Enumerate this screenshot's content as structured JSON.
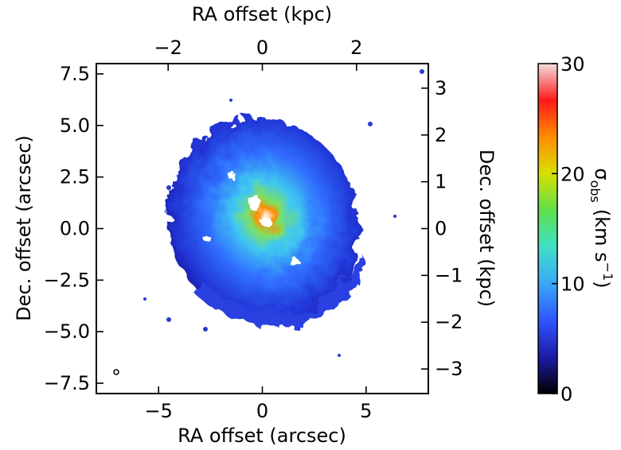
{
  "chart_data": {
    "type": "image",
    "xlabel": "RA offset (arcsec)",
    "ylabel": "Dec. offset (arcsec)",
    "x2label": "RA offset (kpc)",
    "y2label": "Dec. offset (kpc)",
    "xlim": [
      -8,
      8
    ],
    "ylim": [
      -8,
      8
    ],
    "x2lim": [
      -3.525,
      3.525
    ],
    "y2lim": [
      -3.525,
      3.525
    ],
    "xticks": [
      {
        "value": -5,
        "label": "−5"
      },
      0,
      5
    ],
    "yticks": [
      {
        "value": -7.5,
        "label": "−7.5"
      },
      {
        "value": -5,
        "label": "−5.0"
      },
      {
        "value": -2.5,
        "label": "−2.5"
      },
      {
        "value": 0,
        "label": "0.0"
      },
      2.5,
      {
        "value": 5,
        "label": "5.0"
      },
      7.5
    ],
    "x2ticks": [
      {
        "value": -2,
        "label": "−2"
      },
      0,
      2
    ],
    "y2ticks": [
      {
        "value": -3,
        "label": "−3"
      },
      {
        "value": -2,
        "label": "−2"
      },
      {
        "value": -1,
        "label": "−1"
      },
      0,
      1,
      2,
      3
    ],
    "colorbar": {
      "lim": [
        0,
        30
      ],
      "ticks": [
        0,
        10,
        20,
        30
      ],
      "label": {
        "symbol": "σ",
        "sub": "obs",
        "unit": "(km s",
        "sup": "−1",
        "close": ")"
      },
      "colormap": [
        "#000000",
        "#1c1ca8",
        "#2f55ff",
        "#3aa8f5",
        "#40e0c8",
        "#5ee04a",
        "#d8e000",
        "#ff8c00",
        "#ff1a1a",
        "#f2dede"
      ]
    }
  }
}
